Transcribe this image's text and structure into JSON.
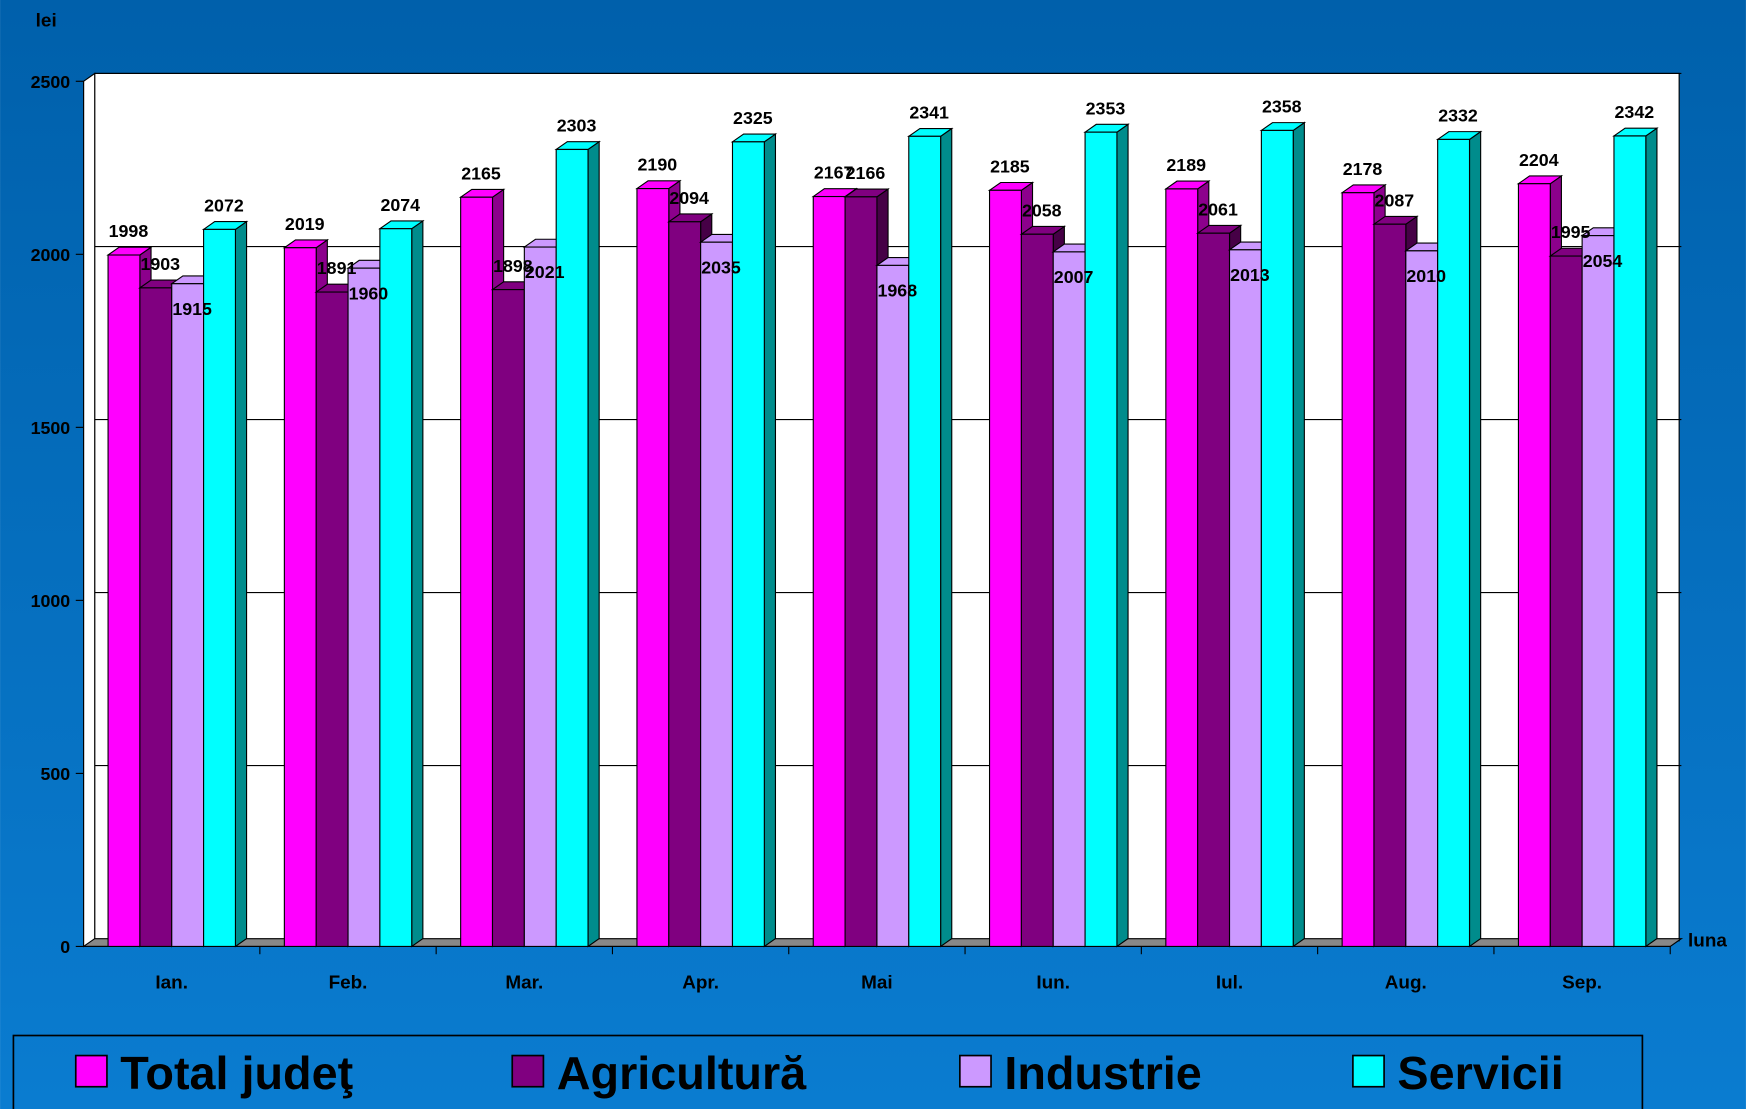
{
  "chart_data": {
    "type": "bar3d",
    "y_axis_label": "lei",
    "x_axis_label": "luna",
    "categories": [
      "Ian.",
      "Feb.",
      "Mar.",
      "Apr.",
      "Mai",
      "Iun.",
      "Iul.",
      "Aug.",
      "Sep."
    ],
    "series": [
      {
        "name": "Total judeţ",
        "color": "#ff00ff",
        "values": [
          1998,
          2019,
          2165,
          2190,
          2167,
          2185,
          2189,
          2178,
          2204
        ]
      },
      {
        "name": "Agricultură",
        "color": "#800080",
        "values": [
          1903,
          1891,
          1898,
          2094,
          2166,
          2058,
          2061,
          2087,
          1995
        ]
      },
      {
        "name": "Industrie",
        "color": "#cc99ff",
        "values": [
          1915,
          1960,
          2021,
          2035,
          1968,
          2007,
          2013,
          2010,
          2054
        ]
      },
      {
        "name": "Servicii",
        "color": "#00ffff",
        "values": [
          2072,
          2074,
          2303,
          2325,
          2341,
          2353,
          2358,
          2332,
          2342
        ]
      }
    ],
    "ylim": [
      0,
      2500
    ],
    "yticks": [
      0,
      500,
      1000,
      1500,
      2000,
      2500
    ],
    "grid": true,
    "legend": "bottom"
  }
}
